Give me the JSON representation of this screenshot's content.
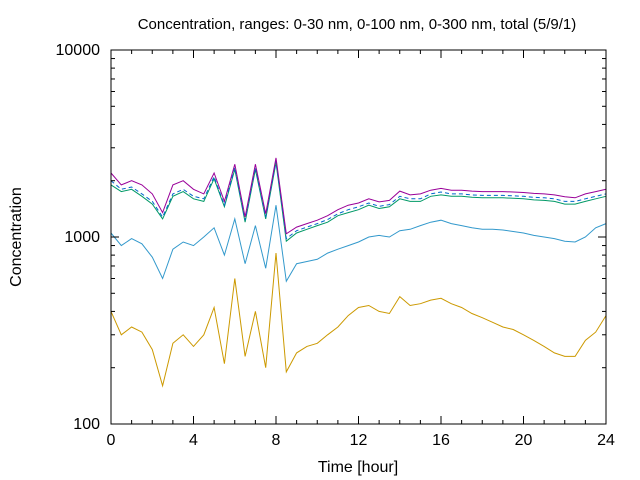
{
  "chart_data": {
    "type": "line",
    "title": "Concentration, ranges: 0-30 nm, 0-100 nm, 0-300 nm, total (5/9/1)",
    "xlabel": "Time [hour]",
    "ylabel": "Concentration",
    "xlim": [
      0,
      24
    ],
    "ylim": [
      100,
      10000
    ],
    "yscale": "log",
    "grid": false,
    "x_ticks": [
      0,
      4,
      8,
      12,
      16,
      20,
      24
    ],
    "x_tick_labels": [
      "0",
      "4",
      "8",
      "12",
      "16",
      "20",
      "24"
    ],
    "y_ticks": [
      100,
      1000,
      10000
    ],
    "y_tick_labels": [
      "100",
      "1000",
      "10000"
    ],
    "x": [
      0,
      0.5,
      1,
      1.5,
      2,
      2.5,
      3,
      3.5,
      4,
      4.5,
      5,
      5.5,
      6,
      6.5,
      7,
      7.5,
      8,
      8.5,
      9,
      9.5,
      10,
      10.5,
      11,
      11.5,
      12,
      12.5,
      13,
      13.5,
      14,
      14.5,
      15,
      15.5,
      16,
      16.5,
      17,
      17.5,
      18,
      18.5,
      19,
      19.5,
      20,
      20.5,
      21,
      21.5,
      22,
      22.5,
      23,
      23.5,
      24
    ],
    "series": [
      {
        "color": "#cc9900",
        "values": [
          400,
          300,
          330,
          310,
          250,
          160,
          270,
          300,
          260,
          300,
          420,
          210,
          600,
          230,
          400,
          200,
          820,
          190,
          240,
          260,
          270,
          300,
          330,
          380,
          420,
          430,
          400,
          390,
          480,
          430,
          440,
          460,
          470,
          440,
          420,
          390,
          370,
          350,
          330,
          320,
          300,
          280,
          260,
          240,
          230,
          230,
          280,
          310,
          380
        ]
      },
      {
        "color": "#3399cc",
        "values": [
          1050,
          900,
          980,
          920,
          780,
          600,
          860,
          940,
          900,
          1000,
          1120,
          800,
          1250,
          720,
          1150,
          680,
          1480,
          580,
          720,
          740,
          760,
          820,
          860,
          900,
          940,
          1000,
          1020,
          1000,
          1080,
          1100,
          1150,
          1200,
          1230,
          1180,
          1150,
          1120,
          1100,
          1100,
          1090,
          1070,
          1050,
          1020,
          1000,
          980,
          950,
          940,
          1000,
          1120,
          1180
        ]
      },
      {
        "color": "#009966",
        "values": [
          1900,
          1750,
          1800,
          1650,
          1500,
          1250,
          1650,
          1750,
          1600,
          1550,
          2050,
          1450,
          2300,
          1200,
          2300,
          1250,
          2500,
          950,
          1050,
          1100,
          1150,
          1200,
          1300,
          1350,
          1400,
          1480,
          1420,
          1450,
          1600,
          1550,
          1550,
          1650,
          1680,
          1650,
          1650,
          1630,
          1620,
          1620,
          1620,
          1610,
          1600,
          1580,
          1570,
          1550,
          1500,
          1500,
          1550,
          1600,
          1650
        ]
      },
      {
        "color": "#0066cc",
        "dashed": true,
        "values": [
          2000,
          1800,
          1850,
          1700,
          1550,
          1280,
          1700,
          1800,
          1650,
          1600,
          2100,
          1480,
          2350,
          1230,
          2350,
          1280,
          2550,
          980,
          1080,
          1130,
          1180,
          1240,
          1330,
          1400,
          1450,
          1520,
          1460,
          1490,
          1650,
          1600,
          1600,
          1700,
          1740,
          1700,
          1700,
          1680,
          1670,
          1670,
          1670,
          1660,
          1650,
          1630,
          1620,
          1600,
          1550,
          1550,
          1600,
          1650,
          1700
        ]
      },
      {
        "color": "#990099",
        "values": [
          2200,
          1900,
          2000,
          1900,
          1700,
          1350,
          1900,
          2000,
          1800,
          1700,
          2200,
          1550,
          2450,
          1280,
          2450,
          1330,
          2650,
          1040,
          1130,
          1180,
          1230,
          1300,
          1400,
          1480,
          1520,
          1600,
          1540,
          1570,
          1760,
          1680,
          1700,
          1780,
          1820,
          1780,
          1780,
          1760,
          1750,
          1750,
          1750,
          1740,
          1730,
          1710,
          1700,
          1680,
          1640,
          1620,
          1700,
          1750,
          1800
        ]
      }
    ]
  }
}
